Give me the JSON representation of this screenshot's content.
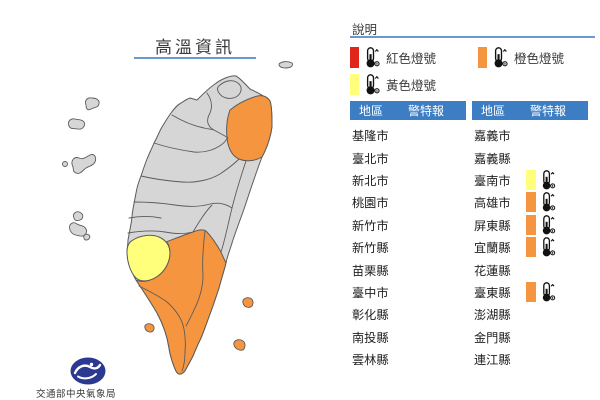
{
  "title": "高溫資訊",
  "legend": {
    "heading": "說明",
    "items": [
      {
        "id": "red",
        "label": "紅色燈號",
        "color": "#e1251b"
      },
      {
        "id": "orange",
        "label": "橙色燈號",
        "color": "#f5953f"
      },
      {
        "id": "yellow",
        "label": "黃色燈號",
        "color": "#ffff7c"
      }
    ]
  },
  "tables": {
    "region_header": "地區",
    "warning_header": "警特報",
    "left_rows": [
      {
        "region": "基隆市",
        "warning": null
      },
      {
        "region": "臺北市",
        "warning": null
      },
      {
        "region": "新北市",
        "warning": null
      },
      {
        "region": "桃園市",
        "warning": null
      },
      {
        "region": "新竹市",
        "warning": null
      },
      {
        "region": "新竹縣",
        "warning": null
      },
      {
        "region": "苗栗縣",
        "warning": null
      },
      {
        "region": "臺中市",
        "warning": null
      },
      {
        "region": "彰化縣",
        "warning": null
      },
      {
        "region": "南投縣",
        "warning": null
      },
      {
        "region": "雲林縣",
        "warning": null
      }
    ],
    "right_rows": [
      {
        "region": "嘉義市",
        "warning": null
      },
      {
        "region": "嘉義縣",
        "warning": null
      },
      {
        "region": "臺南市",
        "warning": "yellow"
      },
      {
        "region": "高雄市",
        "warning": "orange"
      },
      {
        "region": "屏東縣",
        "warning": "orange"
      },
      {
        "region": "宜蘭縣",
        "warning": "orange"
      },
      {
        "region": "花蓮縣",
        "warning": null
      },
      {
        "region": "臺東縣",
        "warning": "orange"
      },
      {
        "region": "澎湖縣",
        "warning": null
      },
      {
        "region": "金門縣",
        "warning": null
      },
      {
        "region": "連江縣",
        "warning": null
      }
    ]
  },
  "map": {
    "region_colors": {
      "taiwan-main": "map_gray",
      "yilan": "orange",
      "tainan": "yellow",
      "south-orange": "orange",
      "guishan-island": "map_gray",
      "matsu-island-a": "map_gray",
      "matsu-island-b": "map_gray",
      "kinmen-islet": "map_gray",
      "kinmen-island": "map_gray",
      "penghu-island-1": "map_gray",
      "penghu-island-2": "map_gray",
      "penghu-island-3": "map_gray",
      "liuqiu-island": "orange",
      "green-island": "orange",
      "orchid-island": "orange"
    }
  },
  "footer": {
    "agency": "交通部中央氣象局"
  },
  "colors": {
    "red": "#e1251b",
    "orange": "#f5953f",
    "yellow": "#ffff7c",
    "map_gray": "#d6d6d6",
    "header_blue": "#3d7dc3",
    "line_blue": "#6b98ce",
    "logo_blue": "#2b3990"
  }
}
